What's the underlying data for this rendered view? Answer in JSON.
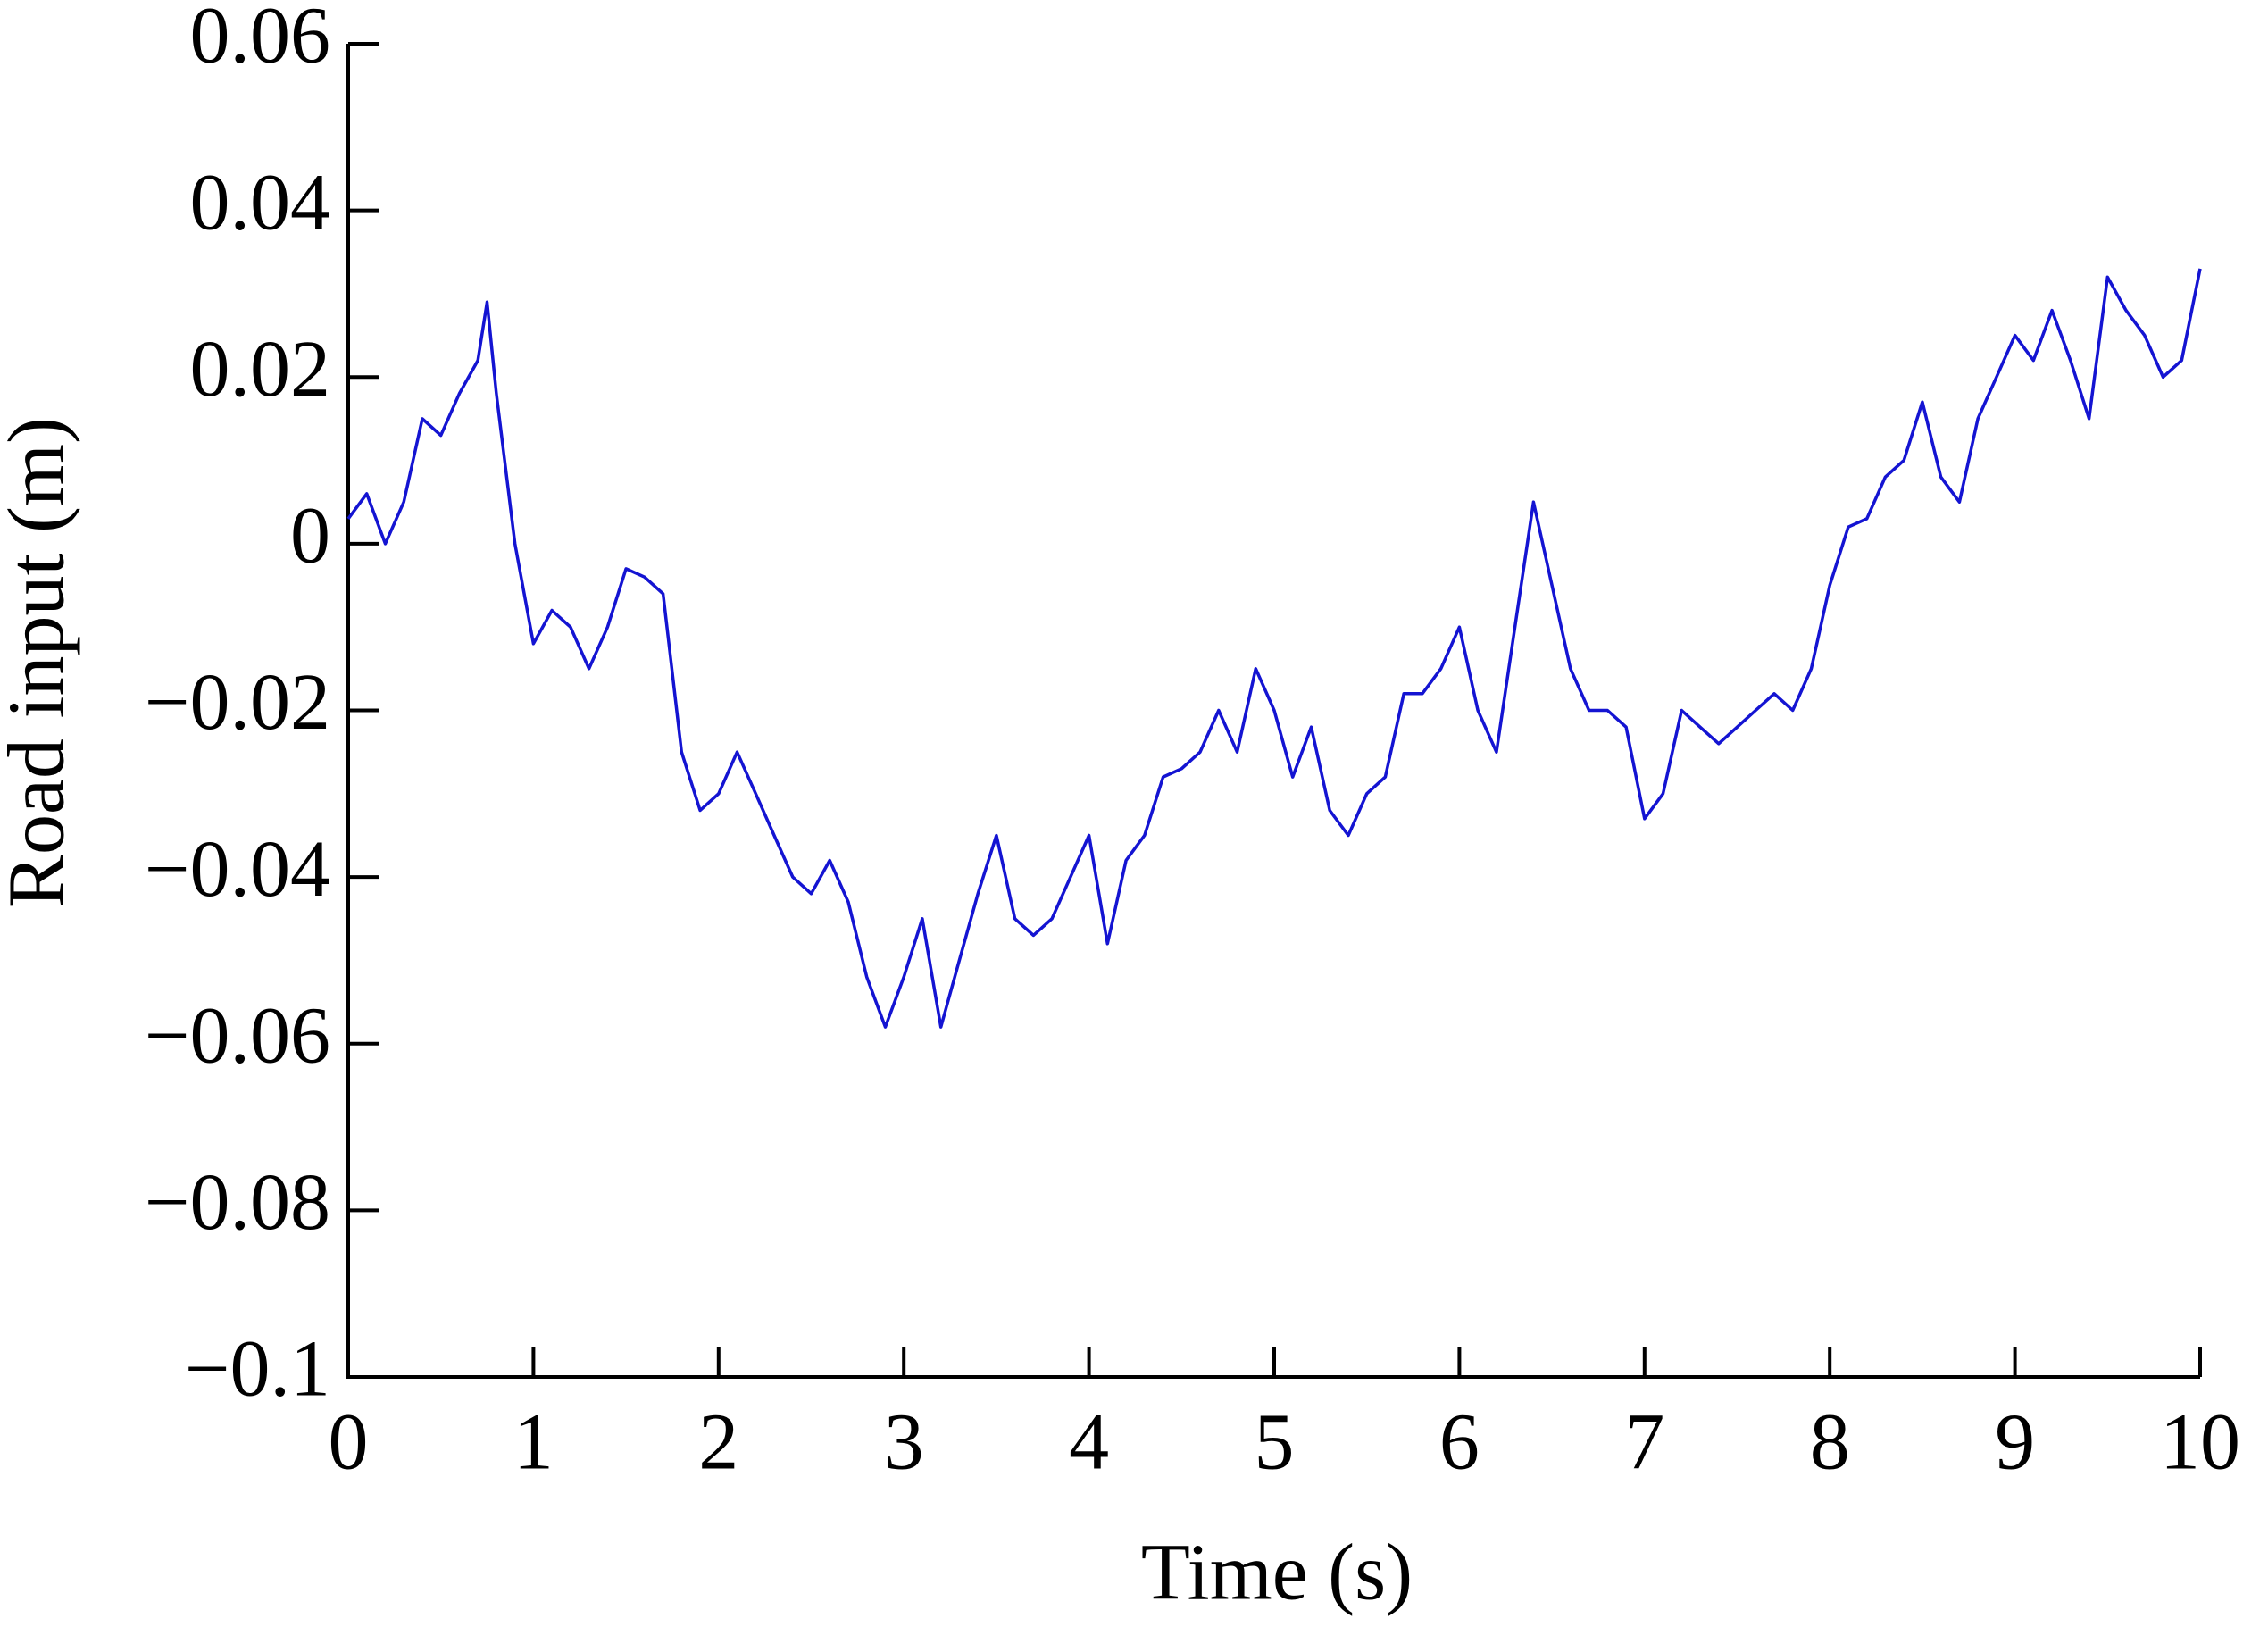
{
  "chart_data": {
    "type": "line",
    "xlabel": "Time (s)",
    "ylabel": "Road input (m)",
    "x": [
      0,
      0.1,
      0.2,
      0.3,
      0.4,
      0.5,
      0.6,
      0.7,
      0.75,
      0.8,
      0.9,
      1.0,
      1.1,
      1.2,
      1.3,
      1.4,
      1.5,
      1.6,
      1.7,
      1.8,
      1.9,
      2.0,
      2.1,
      2.2,
      2.3,
      2.4,
      2.5,
      2.6,
      2.7,
      2.8,
      2.9,
      3.0,
      3.1,
      3.2,
      3.3,
      3.4,
      3.5,
      3.6,
      3.7,
      3.8,
      3.9,
      4.0,
      4.1,
      4.2,
      4.3,
      4.4,
      4.5,
      4.6,
      4.7,
      4.8,
      4.9,
      5.0,
      5.1,
      5.2,
      5.3,
      5.4,
      5.5,
      5.6,
      5.7,
      5.8,
      5.9,
      6.0,
      6.1,
      6.2,
      6.3,
      6.4,
      6.5,
      6.6,
      6.7,
      6.8,
      6.9,
      7.0,
      7.1,
      7.2,
      7.3,
      7.4,
      7.5,
      7.6,
      7.7,
      7.8,
      7.9,
      8.0,
      8.1,
      8.2,
      8.3,
      8.4,
      8.5,
      8.6,
      8.7,
      8.8,
      8.9,
      9.0,
      9.1,
      9.2,
      9.3,
      9.4,
      9.5,
      9.6,
      9.7,
      9.8,
      9.9,
      10.0
    ],
    "series": [
      {
        "name": "Road input",
        "color": "#1414d2",
        "values": [
          0.003,
          0.006,
          0.0,
          0.005,
          0.015,
          0.013,
          0.018,
          0.022,
          0.029,
          0.018,
          0.0,
          -0.012,
          -0.008,
          -0.01,
          -0.015,
          -0.01,
          -0.003,
          -0.004,
          -0.006,
          -0.025,
          -0.032,
          -0.03,
          -0.025,
          -0.03,
          -0.035,
          -0.04,
          -0.042,
          -0.038,
          -0.043,
          -0.052,
          -0.058,
          -0.052,
          -0.045,
          -0.058,
          -0.05,
          -0.042,
          -0.035,
          -0.045,
          -0.047,
          -0.045,
          -0.04,
          -0.035,
          -0.048,
          -0.038,
          -0.035,
          -0.028,
          -0.027,
          -0.025,
          -0.02,
          -0.025,
          -0.015,
          -0.02,
          -0.028,
          -0.022,
          -0.032,
          -0.035,
          -0.03,
          -0.028,
          -0.018,
          -0.018,
          -0.015,
          -0.01,
          -0.02,
          -0.025,
          -0.01,
          0.005,
          -0.005,
          -0.015,
          -0.02,
          -0.02,
          -0.022,
          -0.033,
          -0.03,
          -0.02,
          -0.022,
          -0.024,
          -0.022,
          -0.02,
          -0.018,
          -0.02,
          -0.015,
          -0.005,
          0.002,
          0.003,
          0.008,
          0.01,
          0.017,
          0.008,
          0.005,
          0.015,
          0.02,
          0.025,
          0.022,
          0.028,
          0.022,
          0.015,
          0.032,
          0.028,
          0.025,
          0.02,
          0.022,
          0.033
        ]
      }
    ],
    "xlim": [
      0,
      10
    ],
    "xticks": [
      0,
      1,
      2,
      3,
      4,
      5,
      6,
      7,
      8,
      9,
      10
    ],
    "ylim": [
      -0.1,
      0.06
    ],
    "yticks": [
      {
        "value": -0.1,
        "label": "−0.1"
      },
      {
        "value": -0.08,
        "label": "−0.08"
      },
      {
        "value": -0.06,
        "label": "−0.06"
      },
      {
        "value": -0.04,
        "label": "−0.04"
      },
      {
        "value": -0.02,
        "label": "−0.02"
      },
      0,
      0.02,
      0.04,
      0.06
    ],
    "grid": false
  }
}
